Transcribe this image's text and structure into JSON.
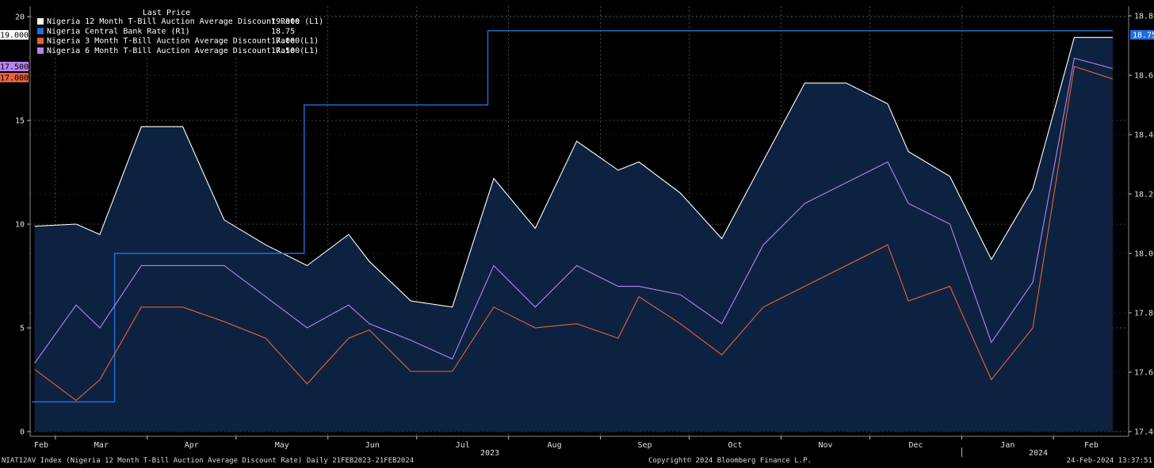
{
  "footer": {
    "left": "NIAT12AV Index (Nigeria 12 Month T-Bill Auction Average Discount Rate)  Daily 21FEB2023-21FEB2024",
    "center": "Copyright© 2024 Bloomberg Finance L.P.",
    "right": "24-Feb-2024 13:37:51"
  },
  "colors": {
    "background": "#000000",
    "plot_fill": "#0d2240",
    "t12": "#ffffff",
    "cbr": "#1f6fe0",
    "t3": "#e8613a",
    "t6": "#b884f2"
  },
  "chart_data": {
    "type": "line",
    "title": "",
    "legend_title": "Last Price",
    "legend_position": "top-left",
    "grid": true,
    "x_axis": {
      "range": [
        "2023-02-21",
        "2024-02-21"
      ],
      "month_labels": [
        "Feb",
        "Mar",
        "Apr",
        "May",
        "Jun",
        "Jul",
        "Aug",
        "Sep",
        "Oct",
        "Nov",
        "Dec",
        "Jan",
        "Feb"
      ],
      "year_labels": [
        "2023",
        "2024"
      ]
    },
    "y_left": {
      "range": [
        0,
        20.5
      ],
      "ticks": [
        "0",
        "5",
        "10",
        "15",
        "20"
      ]
    },
    "y_right": {
      "range": [
        17.4,
        18.8
      ],
      "ticks": [
        "17.40",
        "17.60",
        "17.80",
        "18.00",
        "18.20",
        "18.40",
        "18.60",
        "18.80"
      ]
    },
    "series": [
      {
        "name": "Nigeria 12 Month T-Bill Auction Average Discount Rate  (L1)",
        "last": "19.000",
        "axis": "left",
        "style": "area",
        "points": [
          [
            "2023-02-22",
            9.9
          ],
          [
            "2023-03-08",
            10.0
          ],
          [
            "2023-03-16",
            9.5
          ],
          [
            "2023-03-30",
            14.7
          ],
          [
            "2023-04-13",
            14.7
          ],
          [
            "2023-04-27",
            10.2
          ],
          [
            "2023-05-11",
            9.0
          ],
          [
            "2023-05-25",
            8.0
          ],
          [
            "2023-06-08",
            9.5
          ],
          [
            "2023-06-15",
            8.2
          ],
          [
            "2023-06-29",
            6.3
          ],
          [
            "2023-07-13",
            6.0
          ],
          [
            "2023-07-27",
            12.2
          ],
          [
            "2023-08-10",
            9.8
          ],
          [
            "2023-08-24",
            14.0
          ],
          [
            "2023-09-07",
            12.6
          ],
          [
            "2023-09-14",
            13.0
          ],
          [
            "2023-09-28",
            11.5
          ],
          [
            "2023-10-12",
            9.3
          ],
          [
            "2023-11-09",
            16.8
          ],
          [
            "2023-11-23",
            16.8
          ],
          [
            "2023-12-07",
            15.8
          ],
          [
            "2023-12-14",
            13.5
          ],
          [
            "2023-12-28",
            12.3
          ],
          [
            "2024-01-11",
            8.3
          ],
          [
            "2024-01-25",
            11.7
          ],
          [
            "2024-02-08",
            19.0
          ],
          [
            "2024-02-21",
            19.0
          ]
        ]
      },
      {
        "name": "Nigeria Central Bank Rate  (R1)",
        "last": "18.75",
        "axis": "right",
        "style": "step",
        "points": [
          [
            "2023-02-21",
            17.5
          ],
          [
            "2023-03-21",
            18.0
          ],
          [
            "2023-05-24",
            18.5
          ],
          [
            "2023-07-25",
            18.75
          ],
          [
            "2024-02-21",
            18.75
          ]
        ]
      },
      {
        "name": "Nigeria 3 Month T-Bill Auction Average Discount Rate  (L1)",
        "last": "17.000",
        "axis": "left",
        "style": "line",
        "points": [
          [
            "2023-02-22",
            3.0
          ],
          [
            "2023-03-08",
            1.5
          ],
          [
            "2023-03-16",
            2.5
          ],
          [
            "2023-03-30",
            6.0
          ],
          [
            "2023-04-13",
            6.0
          ],
          [
            "2023-04-27",
            5.3
          ],
          [
            "2023-05-11",
            4.5
          ],
          [
            "2023-05-25",
            2.3
          ],
          [
            "2023-06-08",
            4.5
          ],
          [
            "2023-06-15",
            4.9
          ],
          [
            "2023-06-29",
            2.9
          ],
          [
            "2023-07-13",
            2.9
          ],
          [
            "2023-07-27",
            6.0
          ],
          [
            "2023-08-10",
            5.0
          ],
          [
            "2023-08-24",
            5.2
          ],
          [
            "2023-09-07",
            4.5
          ],
          [
            "2023-09-14",
            6.5
          ],
          [
            "2023-09-28",
            5.2
          ],
          [
            "2023-10-12",
            3.7
          ],
          [
            "2023-10-26",
            6.0
          ],
          [
            "2023-12-07",
            9.0
          ],
          [
            "2023-12-14",
            6.3
          ],
          [
            "2023-12-28",
            7.0
          ],
          [
            "2024-01-11",
            2.5
          ],
          [
            "2024-01-25",
            5.0
          ],
          [
            "2024-02-08",
            17.6
          ],
          [
            "2024-02-21",
            17.0
          ]
        ]
      },
      {
        "name": "Nigeria 6 Month T-Bill Auction Average Discount Rate  (L1)",
        "last": "17.500",
        "axis": "left",
        "style": "line",
        "points": [
          [
            "2023-02-22",
            3.3
          ],
          [
            "2023-03-08",
            6.1
          ],
          [
            "2023-03-16",
            5.0
          ],
          [
            "2023-03-30",
            8.0
          ],
          [
            "2023-04-13",
            8.0
          ],
          [
            "2023-04-27",
            8.0
          ],
          [
            "2023-05-11",
            6.5
          ],
          [
            "2023-05-25",
            5.0
          ],
          [
            "2023-06-08",
            6.1
          ],
          [
            "2023-06-15",
            5.2
          ],
          [
            "2023-06-29",
            4.4
          ],
          [
            "2023-07-13",
            3.5
          ],
          [
            "2023-07-27",
            8.0
          ],
          [
            "2023-08-10",
            6.0
          ],
          [
            "2023-08-24",
            8.0
          ],
          [
            "2023-09-07",
            7.0
          ],
          [
            "2023-09-14",
            7.0
          ],
          [
            "2023-09-28",
            6.6
          ],
          [
            "2023-10-12",
            5.2
          ],
          [
            "2023-10-26",
            9.0
          ],
          [
            "2023-11-09",
            11.0
          ],
          [
            "2023-12-07",
            13.0
          ],
          [
            "2023-12-14",
            11.0
          ],
          [
            "2023-12-28",
            10.0
          ],
          [
            "2024-01-11",
            4.3
          ],
          [
            "2024-01-25",
            7.2
          ],
          [
            "2024-02-08",
            18.0
          ],
          [
            "2024-02-21",
            17.5
          ]
        ]
      }
    ]
  }
}
